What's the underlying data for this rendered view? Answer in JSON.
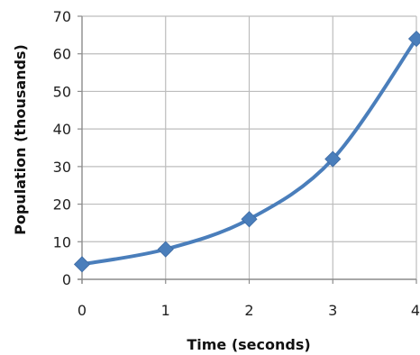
{
  "chart_data": {
    "type": "line",
    "title": "",
    "xlabel": "Time (seconds)",
    "ylabel": "Population (thousands)",
    "x": [
      0,
      1,
      2,
      3,
      4
    ],
    "series": [
      {
        "values": [
          4,
          8,
          16,
          32,
          64
        ],
        "color": "#4A7EBB",
        "marker": "diamond",
        "smooth": true
      }
    ],
    "xlim": [
      0,
      4
    ],
    "ylim": [
      0,
      70
    ],
    "xticks": [
      0,
      1,
      2,
      3,
      4
    ],
    "yticks": [
      0,
      10,
      20,
      30,
      40,
      50,
      60,
      70
    ],
    "grid": true,
    "legend": "none"
  }
}
